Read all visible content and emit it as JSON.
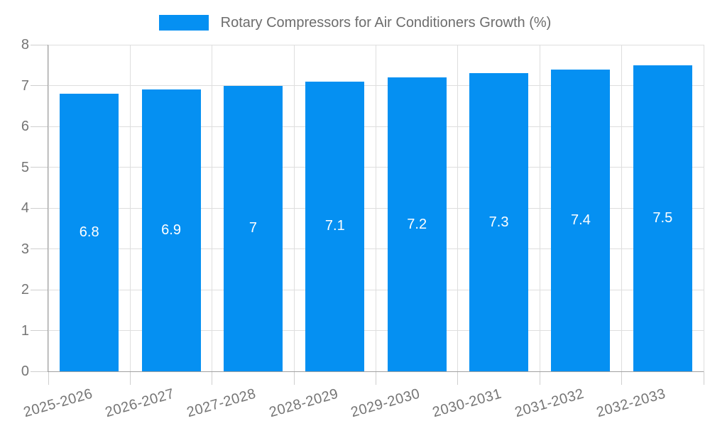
{
  "chart_data": {
    "type": "bar",
    "title": "Rotary Compressors for Air Conditioners Growth (%)",
    "legend_position": "top",
    "categories": [
      "2025-2026",
      "2026-2027",
      "2027-2028",
      "2028-2029",
      "2029-2030",
      "2030-2031",
      "2031-2032",
      "2032-2033"
    ],
    "series": [
      {
        "name": "Rotary Compressors for Air Conditioners Growth (%)",
        "values": [
          6.8,
          6.9,
          7,
          7.1,
          7.2,
          7.3,
          7.4,
          7.5
        ],
        "color": "#0590F2"
      }
    ],
    "value_labels": [
      "6.8",
      "6.9",
      "7",
      "7.1",
      "7.2",
      "7.3",
      "7.4",
      "7.5"
    ],
    "xlabel": "",
    "ylabel": "",
    "ylim": [
      0,
      8
    ],
    "yticks": [
      0,
      1,
      2,
      3,
      4,
      5,
      6,
      7,
      8
    ],
    "grid": true,
    "styles": {
      "bar_color": "#0590F2",
      "grid_color": "#dedede",
      "axis_color": "#a0a0a0",
      "tick_color": "#cfcfcf",
      "tick_label_color": "#757575",
      "legend_text_color": "#6d6d6d",
      "value_label_color": "#ffffff",
      "background_color": "#ffffff",
      "x_label_angle_deg": -16
    }
  }
}
